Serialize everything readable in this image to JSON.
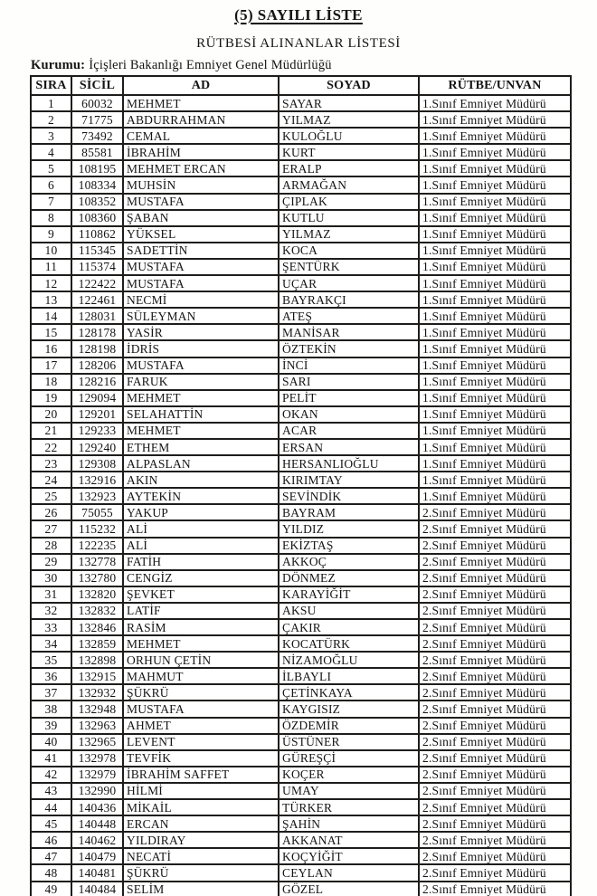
{
  "page": {
    "title": "(5) SAYILI LİSTE",
    "subtitle": "RÜTBESİ ALINANLAR LİSTESİ",
    "kurumu_label": "Kurumu:",
    "kurumu_value": "İçişleri Bakanlığı Emniyet Genel Müdürlüğü",
    "text_color": "#141414",
    "paper_color": "#fefefd",
    "border_color": "#1e1d1b"
  },
  "table": {
    "headers": [
      "SIRA",
      "SİCİL",
      "AD",
      "SOYAD",
      "RÜTBE/UNVAN"
    ],
    "rows": [
      [
        "1",
        "60032",
        "MEHMET",
        "SAYAR",
        "1.Sınıf Emniyet Müdürü"
      ],
      [
        "2",
        "71775",
        "ABDURRAHMAN",
        "YILMAZ",
        "1.Sınıf Emniyet Müdürü"
      ],
      [
        "3",
        "73492",
        "CEMAL",
        "KULOĞLU",
        "1.Sınıf Emniyet Müdürü"
      ],
      [
        "4",
        "85581",
        "İBRAHİM",
        "KURT",
        "1.Sınıf Emniyet Müdürü"
      ],
      [
        "5",
        "108195",
        "MEHMET ERCAN",
        "ERALP",
        "1.Sınıf Emniyet Müdürü"
      ],
      [
        "6",
        "108334",
        "MUHSİN",
        "ARMAĞAN",
        "1.Sınıf Emniyet Müdürü"
      ],
      [
        "7",
        "108352",
        "MUSTAFA",
        "ÇIPLAK",
        "1.Sınıf Emniyet Müdürü"
      ],
      [
        "8",
        "108360",
        "ŞABAN",
        "KUTLU",
        "1.Sınıf Emniyet Müdürü"
      ],
      [
        "9",
        "110862",
        "YÜKSEL",
        "YILMAZ",
        "1.Sınıf Emniyet Müdürü"
      ],
      [
        "10",
        "115345",
        "SADETTİN",
        "KOCA",
        "1.Sınıf Emniyet Müdürü"
      ],
      [
        "11",
        "115374",
        "MUSTAFA",
        "ŞENTÜRK",
        "1.Sınıf Emniyet Müdürü"
      ],
      [
        "12",
        "122422",
        "MUSTAFA",
        "UÇAR",
        "1.Sınıf Emniyet Müdürü"
      ],
      [
        "13",
        "122461",
        "NECMİ",
        "BAYRAKÇI",
        "1.Sınıf Emniyet Müdürü"
      ],
      [
        "14",
        "128031",
        "SÜLEYMAN",
        "ATEŞ",
        "1.Sınıf Emniyet Müdürü"
      ],
      [
        "15",
        "128178",
        "YASİR",
        "MANİSAR",
        "1.Sınıf Emniyet Müdürü"
      ],
      [
        "16",
        "128198",
        "İDRİS",
        "ÖZTEKİN",
        "1.Sınıf Emniyet Müdürü"
      ],
      [
        "17",
        "128206",
        "MUSTAFA",
        "İNCİ",
        "1.Sınıf Emniyet Müdürü"
      ],
      [
        "18",
        "128216",
        "FARUK",
        "SARI",
        "1.Sınıf Emniyet Müdürü"
      ],
      [
        "19",
        "129094",
        "MEHMET",
        "PELİT",
        "1.Sınıf Emniyet Müdürü"
      ],
      [
        "20",
        "129201",
        "SELAHATTİN",
        "OKAN",
        "1.Sınıf Emniyet Müdürü"
      ],
      [
        "21",
        "129233",
        "MEHMET",
        "ACAR",
        "1.Sınıf Emniyet Müdürü"
      ],
      [
        "22",
        "129240",
        "ETHEM",
        "ERSAN",
        "1.Sınıf Emniyet Müdürü"
      ],
      [
        "23",
        "129308",
        "ALPASLAN",
        "HERSANLIOĞLU",
        "1.Sınıf Emniyet Müdürü"
      ],
      [
        "24",
        "132916",
        "AKIN",
        "KIRIMTAY",
        "1.Sınıf Emniyet Müdürü"
      ],
      [
        "25",
        "132923",
        "AYTEKİN",
        "SEVİNDİK",
        "1.Sınıf Emniyet Müdürü"
      ],
      [
        "26",
        "75055",
        "YAKUP",
        "BAYRAM",
        "2.Sınıf Emniyet Müdürü"
      ],
      [
        "27",
        "115232",
        "ALİ",
        "YILDIZ",
        "2.Sınıf Emniyet Müdürü"
      ],
      [
        "28",
        "122235",
        "ALİ",
        "EKİZTAŞ",
        "2.Sınıf Emniyet Müdürü"
      ],
      [
        "29",
        "132778",
        "FATİH",
        "AKKOÇ",
        "2.Sınıf Emniyet Müdürü"
      ],
      [
        "30",
        "132780",
        "CENGİZ",
        "DÖNMEZ",
        "2.Sınıf Emniyet Müdürü"
      ],
      [
        "31",
        "132820",
        "ŞEVKET",
        "KARAYİĞİT",
        "2.Sınıf Emniyet Müdürü"
      ],
      [
        "32",
        "132832",
        "LATİF",
        "AKSU",
        "2.Sınıf Emniyet Müdürü"
      ],
      [
        "33",
        "132846",
        "RASİM",
        "ÇAKIR",
        "2.Sınıf Emniyet Müdürü"
      ],
      [
        "34",
        "132859",
        "MEHMET",
        "KOCATÜRK",
        "2.Sınıf Emniyet Müdürü"
      ],
      [
        "35",
        "132898",
        "ORHUN ÇETİN",
        "NİZAMOĞLU",
        "2.Sınıf Emniyet Müdürü"
      ],
      [
        "36",
        "132915",
        "MAHMUT",
        "İLBAYLI",
        "2.Sınıf Emniyet Müdürü"
      ],
      [
        "37",
        "132932",
        "ŞÜKRÜ",
        "ÇETİNKAYA",
        "2.Sınıf Emniyet Müdürü"
      ],
      [
        "38",
        "132948",
        "MUSTAFA",
        "KAYGISIZ",
        "2.Sınıf Emniyet Müdürü"
      ],
      [
        "39",
        "132963",
        "AHMET",
        "ÖZDEMİR",
        "2.Sınıf Emniyet Müdürü"
      ],
      [
        "40",
        "132965",
        "LEVENT",
        "ÜSTÜNER",
        "2.Sınıf Emniyet Müdürü"
      ],
      [
        "41",
        "132978",
        "TEVFİK",
        "GÜREŞÇİ",
        "2.Sınıf Emniyet Müdürü"
      ],
      [
        "42",
        "132979",
        "İBRAHİM SAFFET",
        "KOÇER",
        "2.Sınıf Emniyet Müdürü"
      ],
      [
        "43",
        "132990",
        "HİLMİ",
        "UMAY",
        "2.Sınıf Emniyet Müdürü"
      ],
      [
        "44",
        "140436",
        "MİKAİL",
        "TÜRKER",
        "2.Sınıf Emniyet Müdürü"
      ],
      [
        "45",
        "140448",
        "ERCAN",
        "ŞAHİN",
        "2.Sınıf Emniyet Müdürü"
      ],
      [
        "46",
        "140462",
        "YILDIRAY",
        "AKKANAT",
        "2.Sınıf Emniyet Müdürü"
      ],
      [
        "47",
        "140479",
        "NECATİ",
        "KOÇYİĞİT",
        "2.Sınıf Emniyet Müdürü"
      ],
      [
        "48",
        "140481",
        "ŞÜKRÜ",
        "CEYLAN",
        "2.Sınıf Emniyet Müdürü"
      ],
      [
        "49",
        "140484",
        "SELİM",
        "GÖZEL",
        "2.Sınıf Emniyet Müdürü"
      ]
    ]
  }
}
